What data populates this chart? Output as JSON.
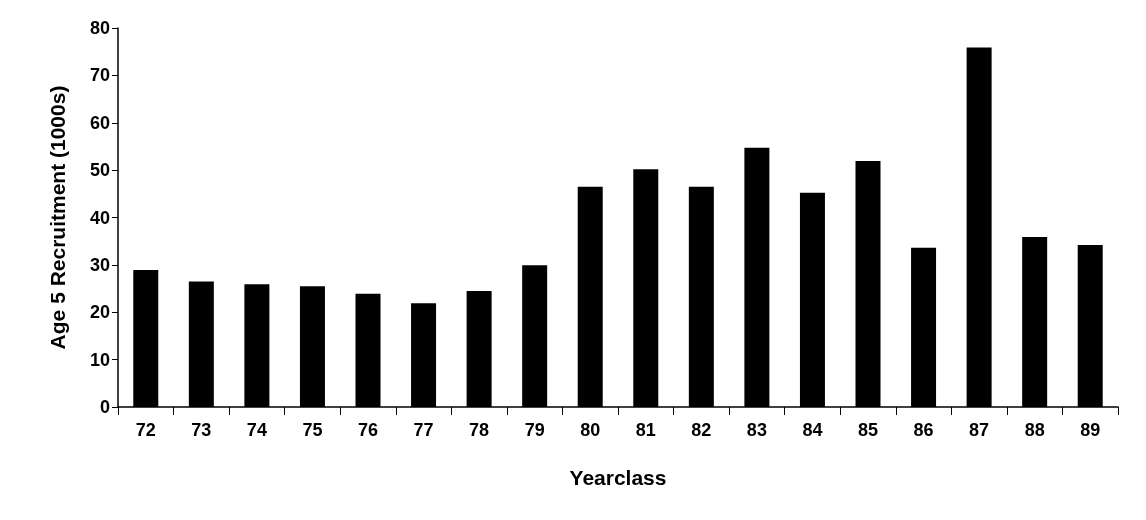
{
  "chart_data": {
    "type": "bar",
    "xlabel": "Yearclass",
    "ylabel": "Age 5 Recruitment (1000s)",
    "categories": [
      "72",
      "73",
      "74",
      "75",
      "76",
      "77",
      "78",
      "79",
      "80",
      "81",
      "82",
      "83",
      "84",
      "85",
      "86",
      "87",
      "88",
      "89"
    ],
    "values": [
      28.9,
      26.5,
      25.9,
      25.5,
      23.9,
      21.9,
      24.5,
      29.9,
      46.5,
      50.2,
      46.5,
      54.7,
      45.2,
      51.9,
      33.6,
      75.9,
      35.9,
      34.2
    ],
    "color": "#000000",
    "ylim": [
      0,
      80
    ],
    "yticks": [
      0,
      10,
      20,
      30,
      40,
      50,
      60,
      70,
      80
    ],
    "grid": false
  }
}
